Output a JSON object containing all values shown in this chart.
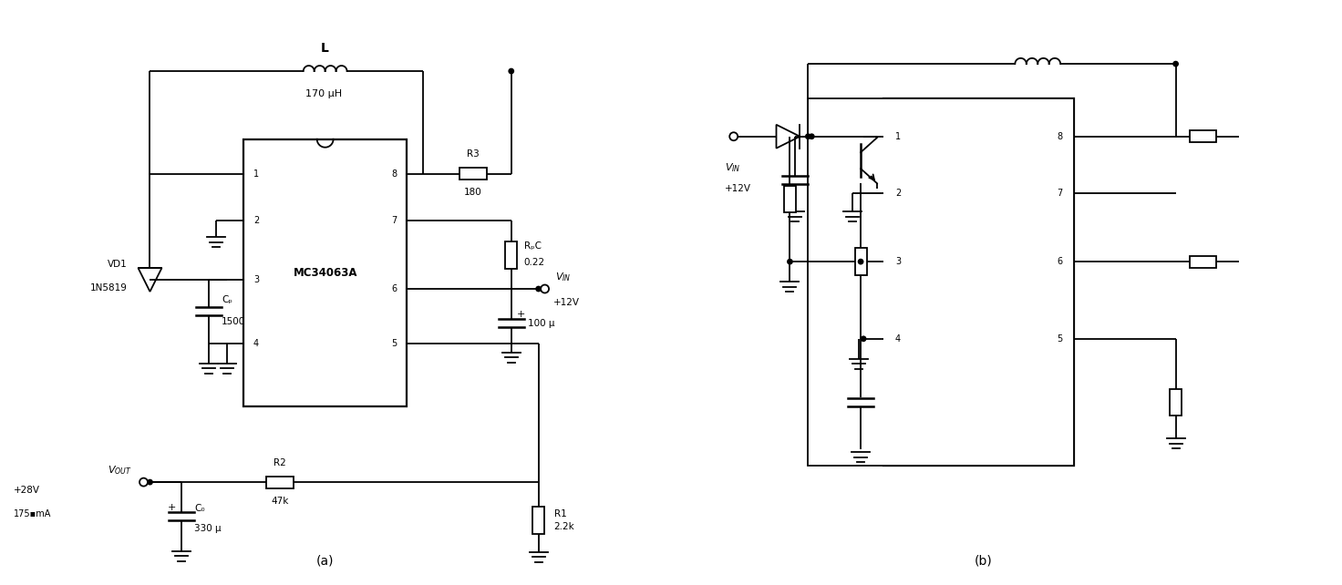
{
  "bg_color": "#ffffff",
  "line_color": "#000000",
  "fig_width": 14.72,
  "fig_height": 6.42,
  "label_a": "(a)",
  "label_b": "(b)",
  "ic_label": "MC34063A",
  "L_label": "L",
  "L_value": "170 μH",
  "R3_label1": "R3",
  "R3_label2": "180",
  "RSC_label1": "RₚC",
  "RSC_label2": "0.22",
  "R2_label1": "R2",
  "R2_label2": "47k",
  "R1_label1": "R1",
  "R1_label2": "2.2k",
  "CT_label1": "Cₚ",
  "CT_label2": "1500",
  "VD1_label1": "VD1",
  "VD1_label2": "1N5819",
  "C0_label1": "C₀",
  "C0_label2": "330 μ",
  "C100_label": "100 μ",
  "VOUT_label": "$V_{OUT}$",
  "VOUT_line2": "+28V",
  "VOUT_line3": "175▪mA",
  "VIN_label": "$V_{IN}$",
  "VIN_line2": "+12V"
}
